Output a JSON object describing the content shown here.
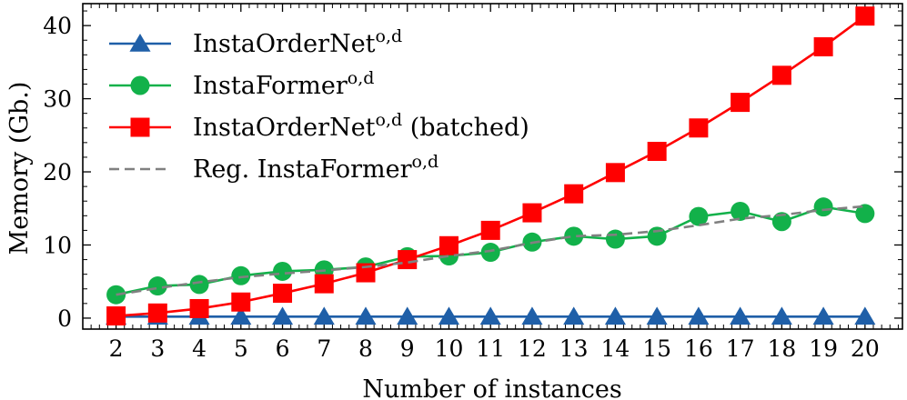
{
  "chart_data": {
    "type": "line",
    "title": "",
    "xlabel": "Number of instances",
    "ylabel": "Memory (Gb.)",
    "x": [
      2,
      3,
      4,
      5,
      6,
      7,
      8,
      9,
      10,
      11,
      12,
      13,
      14,
      15,
      16,
      17,
      18,
      19,
      20
    ],
    "xlim": [
      1.2,
      20.9
    ],
    "ylim": [
      -1.5,
      43.0
    ],
    "yticks": [
      0,
      10,
      20,
      30,
      40
    ],
    "grid": false,
    "legend_position": "top-left",
    "series": [
      {
        "name": "InstaOrderNet",
        "name_sup": "o,d",
        "name_suffix": "",
        "color": "#1f5fa8",
        "marker": "triangle",
        "linestyle": "solid",
        "values": [
          0.2,
          0.2,
          0.2,
          0.2,
          0.2,
          0.2,
          0.2,
          0.2,
          0.2,
          0.2,
          0.2,
          0.2,
          0.2,
          0.2,
          0.2,
          0.2,
          0.2,
          0.2,
          0.2
        ]
      },
      {
        "name": "InstaFormer",
        "name_sup": "o,d",
        "name_suffix": "",
        "color": "#12b14a",
        "marker": "circle",
        "linestyle": "solid",
        "values": [
          3.2,
          4.4,
          4.6,
          5.8,
          6.4,
          6.6,
          7.0,
          8.4,
          8.5,
          9.0,
          10.4,
          11.2,
          10.8,
          11.2,
          13.9,
          14.6,
          13.2,
          15.2,
          14.3
        ]
      },
      {
        "name": "InstaOrderNet",
        "name_sup": "o,d",
        "name_suffix": "(batched)",
        "color": "#ff0000",
        "marker": "square",
        "linestyle": "solid",
        "values": [
          0.3,
          0.7,
          1.3,
          2.2,
          3.4,
          4.7,
          6.2,
          8.0,
          9.9,
          12.0,
          14.4,
          17.0,
          19.9,
          22.8,
          26.0,
          29.5,
          33.2,
          37.1,
          41.3
        ]
      },
      {
        "name": "Reg. InstaFormer",
        "name_sup": "o,d",
        "name_suffix": "",
        "color": "#808080",
        "marker": "none",
        "linestyle": "dashed",
        "values": [
          3.2,
          4.1,
          4.9,
          5.6,
          6.1,
          6.5,
          7.0,
          7.6,
          8.5,
          9.2,
          10.3,
          11.2,
          11.4,
          11.9,
          12.7,
          13.6,
          14.1,
          14.8,
          15.3
        ]
      }
    ]
  }
}
